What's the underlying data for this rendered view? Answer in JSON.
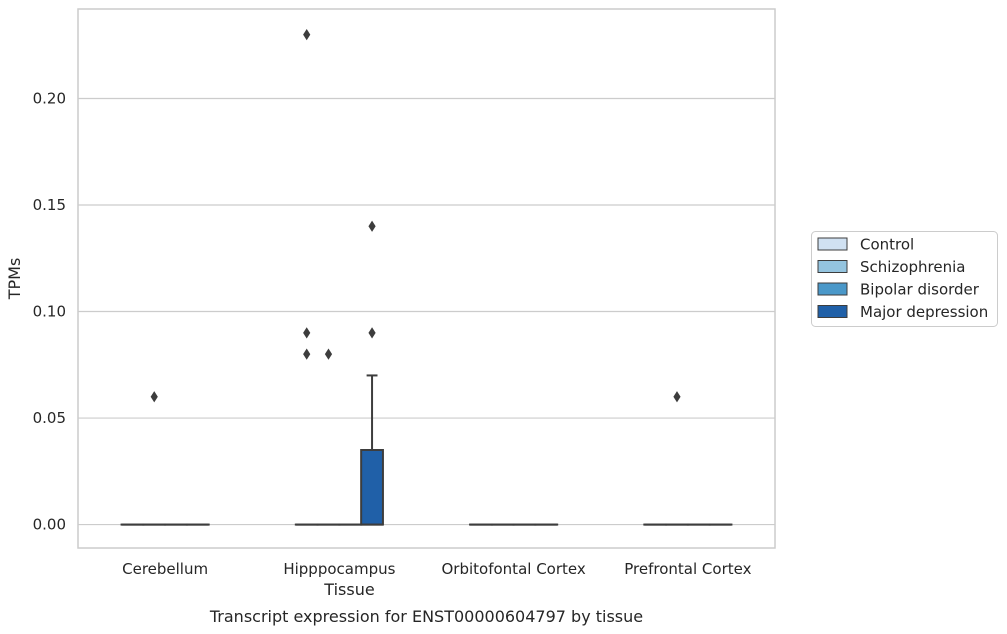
{
  "chart_data": {
    "type": "box",
    "xlabel": "Tissue",
    "ylabel": "TPMs",
    "caption": "Transcript expression for ENST00000604797 by tissue",
    "ylim": [
      -0.011,
      0.242
    ],
    "yticks": [
      "0.00",
      "0.05",
      "0.10",
      "0.15",
      "0.20"
    ],
    "grid": true,
    "legend_position": "right",
    "categories": [
      "Cerebellum",
      "Hipppocampus",
      "Orbitofontal Cortex",
      "Prefrontal Cortex"
    ],
    "series": [
      {
        "name": "Control",
        "color": "#d0e1f2",
        "boxes": [
          {
            "q1": 0,
            "median": 0,
            "q3": 0,
            "whisker_low": 0,
            "whisker_high": 0,
            "outliers": []
          },
          {
            "q1": 0,
            "median": 0,
            "q3": 0,
            "whisker_low": 0,
            "whisker_high": 0,
            "outliers": [
              0.23,
              0.09,
              0.08
            ]
          },
          {
            "q1": 0,
            "median": 0,
            "q3": 0,
            "whisker_low": 0,
            "whisker_high": 0,
            "outliers": []
          },
          {
            "q1": 0,
            "median": 0,
            "q3": 0,
            "whisker_low": 0,
            "whisker_high": 0,
            "outliers": []
          }
        ]
      },
      {
        "name": "Schizophrenia",
        "color": "#94c4df",
        "boxes": [
          {
            "q1": 0,
            "median": 0,
            "q3": 0,
            "whisker_low": 0,
            "whisker_high": 0,
            "outliers": [
              0.06
            ]
          },
          {
            "q1": 0,
            "median": 0,
            "q3": 0,
            "whisker_low": 0,
            "whisker_high": 0,
            "outliers": [
              0.08
            ]
          },
          {
            "q1": 0,
            "median": 0,
            "q3": 0,
            "whisker_low": 0,
            "whisker_high": 0,
            "outliers": []
          },
          {
            "q1": 0,
            "median": 0,
            "q3": 0,
            "whisker_low": 0,
            "whisker_high": 0,
            "outliers": [
              0.06
            ]
          }
        ]
      },
      {
        "name": "Bipolar disorder",
        "color": "#4a98c9",
        "boxes": [
          {
            "q1": 0,
            "median": 0,
            "q3": 0,
            "whisker_low": 0,
            "whisker_high": 0,
            "outliers": []
          },
          {
            "q1": 0,
            "median": 0,
            "q3": 0,
            "whisker_low": 0,
            "whisker_high": 0,
            "outliers": []
          },
          {
            "q1": 0,
            "median": 0,
            "q3": 0,
            "whisker_low": 0,
            "whisker_high": 0,
            "outliers": []
          },
          {
            "q1": 0,
            "median": 0,
            "q3": 0,
            "whisker_low": 0,
            "whisker_high": 0,
            "outliers": []
          }
        ]
      },
      {
        "name": "Major depression",
        "color": "#2060a8",
        "boxes": [
          {
            "q1": 0,
            "median": 0,
            "q3": 0,
            "whisker_low": 0,
            "whisker_high": 0,
            "outliers": []
          },
          {
            "q1": 0,
            "median": 0,
            "q3": 0.035,
            "whisker_low": 0,
            "whisker_high": 0.07,
            "outliers": [
              0.14,
              0.09
            ]
          },
          {
            "q1": 0,
            "median": 0,
            "q3": 0,
            "whisker_low": 0,
            "whisker_high": 0,
            "outliers": []
          },
          {
            "q1": 0,
            "median": 0,
            "q3": 0,
            "whisker_low": 0,
            "whisker_high": 0,
            "outliers": []
          }
        ]
      }
    ]
  }
}
